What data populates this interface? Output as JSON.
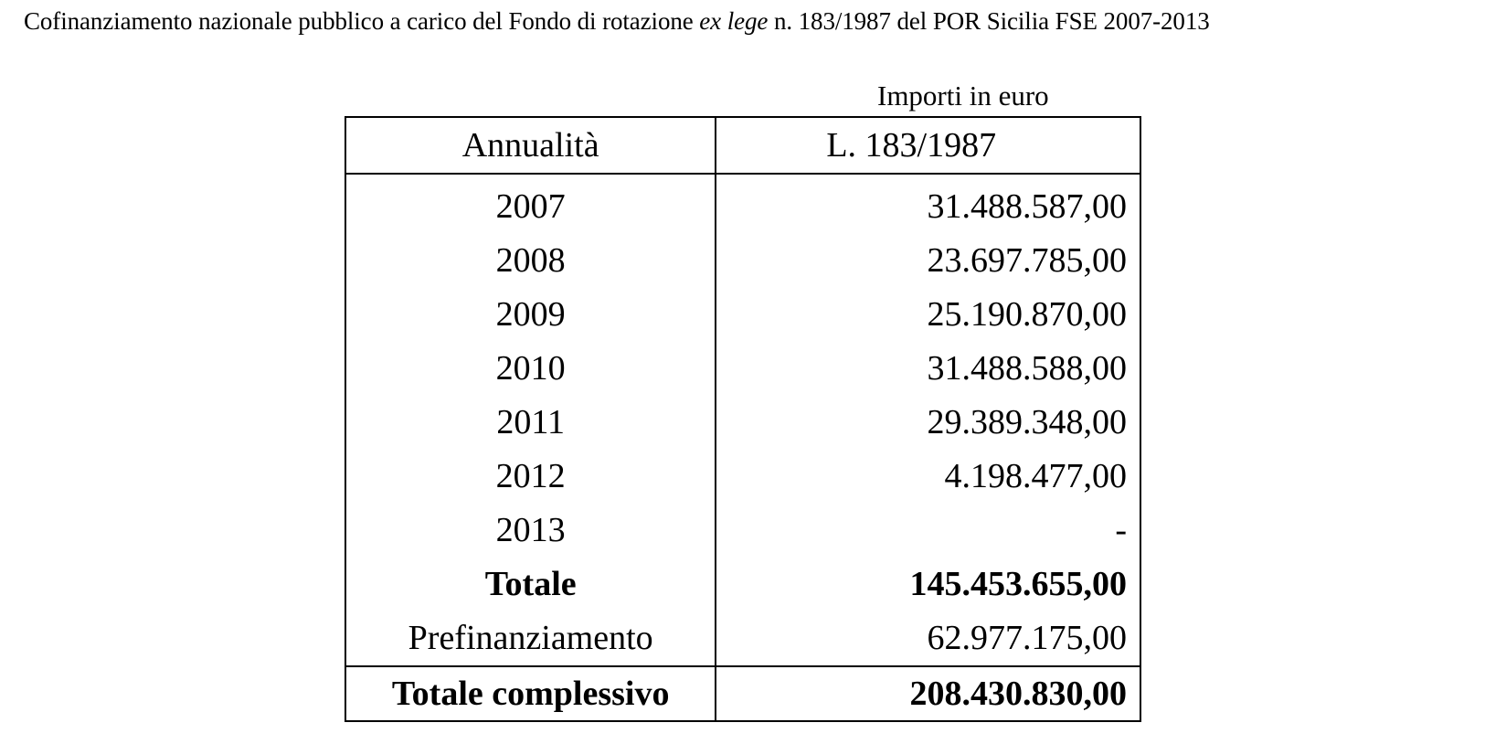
{
  "document": {
    "title_before": "Cofinanziamento nazionale pubblico a carico del Fondo di rotazione ",
    "title_italic": "ex lege",
    "title_after": " n. 183/1987 del POR Sicilia FSE 2007-2013",
    "units_label": "Importi in euro"
  },
  "table": {
    "headers": [
      "Annualità",
      "L. 183/1987"
    ],
    "rows": [
      {
        "label": "2007",
        "amount": "31.488.587,00"
      },
      {
        "label": "2008",
        "amount": "23.697.785,00"
      },
      {
        "label": "2009",
        "amount": "25.190.870,00"
      },
      {
        "label": "2010",
        "amount": "31.488.588,00"
      },
      {
        "label": "2011",
        "amount": "29.389.348,00"
      },
      {
        "label": "2012",
        "amount": "4.198.477,00"
      },
      {
        "label": "2013",
        "amount": "-"
      }
    ],
    "total": {
      "label": "Totale",
      "amount": "145.453.655,00"
    },
    "prefinancing": {
      "label": "Prefinanziamento",
      "amount": "62.977.175,00"
    },
    "grand_total": {
      "label": "Totale complessivo",
      "amount": "208.430.830,00"
    }
  }
}
